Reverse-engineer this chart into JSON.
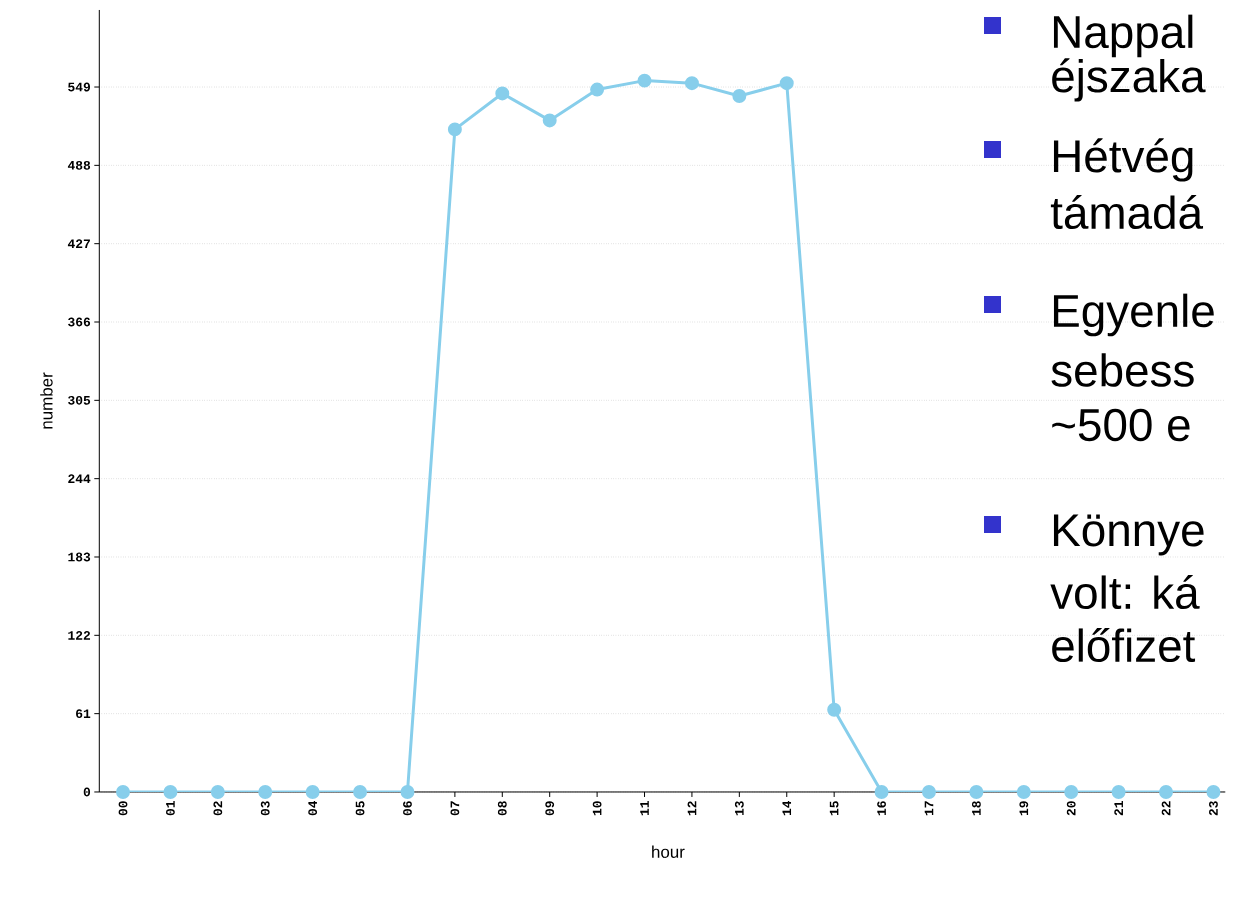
{
  "chart_data": {
    "type": "line",
    "xlabel": "hour",
    "ylabel": "number",
    "categories": [
      "00",
      "01",
      "02",
      "03",
      "04",
      "05",
      "06",
      "07",
      "08",
      "09",
      "10",
      "11",
      "12",
      "13",
      "14",
      "15",
      "16",
      "17",
      "18",
      "19",
      "20",
      "21",
      "22",
      "23"
    ],
    "values": [
      0,
      0,
      0,
      0,
      0,
      0,
      0,
      516,
      544,
      523,
      547,
      554,
      552,
      542,
      552,
      64,
      0,
      0,
      0,
      0,
      0,
      0,
      0,
      0
    ],
    "color": "#87ceeb",
    "marker": "circle",
    "line_style": "solid",
    "grid": "y",
    "ylim": [
      0,
      609
    ],
    "yticks": [
      0,
      61,
      122,
      183,
      244,
      305,
      366,
      427,
      488,
      549
    ],
    "annotations": [
      "Nappal",
      "éjszaka",
      "Hétvég",
      "támadá",
      "Egyenle",
      "sebess",
      "~500 e",
      "Könnye",
      "volt: ká",
      "előfizet"
    ]
  }
}
